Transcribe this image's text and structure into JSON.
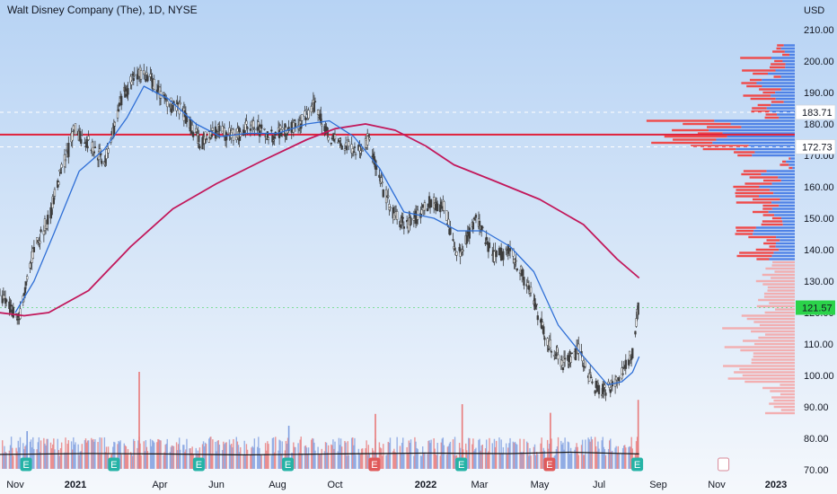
{
  "header": {
    "title": "Walt Disney Company (The), 1D, NYSE",
    "currency": "USD"
  },
  "colors": {
    "background_top": "#b7d3f4",
    "background_bottom": "#f5f8fc",
    "candle": "#3d3d3d",
    "ma_fast": "#2f6fd6",
    "ma_slow": "#c2185b",
    "resistance_line": "#e0203a",
    "volume_up": "#7f9fe0",
    "volume_down": "#e87a7a",
    "volume_ma": "#1a1a1a",
    "profile_up": "#4f82e6",
    "profile_down": "#ef4a4a",
    "profile_value_area_fade": "#f4a3a3",
    "price_badge": "#2bd34a",
    "level_badge": "#ffffff",
    "earnings_past": "#25b3a6",
    "earnings_down": "#e05a5a"
  },
  "chart_data": {
    "type": "candlestick",
    "title": "Walt Disney Company (The), 1D, NYSE",
    "ylabel": "USD",
    "ylim": [
      70,
      213
    ],
    "y_ticks": [
      210,
      200,
      190,
      180,
      170,
      160,
      150,
      140,
      130,
      120,
      110,
      100,
      90,
      80,
      70
    ],
    "x_ticks": [
      {
        "label": "Nov",
        "date": "2020-11-01",
        "bold": false
      },
      {
        "label": "2021",
        "date": "2021-01-01",
        "bold": true
      },
      {
        "label": "Apr",
        "date": "2021-04-01",
        "bold": false
      },
      {
        "label": "Jun",
        "date": "2021-06-01",
        "bold": false
      },
      {
        "label": "Aug",
        "date": "2021-08-01",
        "bold": false
      },
      {
        "label": "Oct",
        "date": "2021-10-01",
        "bold": false
      },
      {
        "label": "2022",
        "date": "2022-01-01",
        "bold": true
      },
      {
        "label": "Mar",
        "date": "2022-03-01",
        "bold": false
      },
      {
        "label": "May",
        "date": "2022-05-01",
        "bold": false
      },
      {
        "label": "Jul",
        "date": "2022-07-01",
        "bold": false
      },
      {
        "label": "Sep",
        "date": "2022-09-01",
        "bold": false
      },
      {
        "label": "Nov",
        "date": "2022-11-01",
        "bold": false
      },
      {
        "label": "2023",
        "date": "2023-01-01",
        "bold": true
      }
    ],
    "price_path": [
      [
        "2020-10-15",
        126
      ],
      [
        "2020-11-05",
        118
      ],
      [
        "2020-11-20",
        140
      ],
      [
        "2020-12-05",
        150
      ],
      [
        "2020-12-15",
        162
      ],
      [
        "2020-12-31",
        178
      ],
      [
        "2021-01-15",
        174
      ],
      [
        "2021-02-01",
        168
      ],
      [
        "2021-02-20",
        188
      ],
      [
        "2021-03-05",
        196
      ],
      [
        "2021-03-20",
        195
      ],
      [
        "2021-04-05",
        188
      ],
      [
        "2021-04-25",
        184
      ],
      [
        "2021-05-15",
        174
      ],
      [
        "2021-06-01",
        178
      ],
      [
        "2021-06-20",
        176
      ],
      [
        "2021-07-05",
        180
      ],
      [
        "2021-07-25",
        176
      ],
      [
        "2021-08-05",
        178
      ],
      [
        "2021-08-25",
        180
      ],
      [
        "2021-09-10",
        186
      ],
      [
        "2021-09-25",
        176
      ],
      [
        "2021-10-10",
        173
      ],
      [
        "2021-10-25",
        172
      ],
      [
        "2021-11-05",
        175
      ],
      [
        "2021-11-15",
        162
      ],
      [
        "2021-12-01",
        150
      ],
      [
        "2021-12-15",
        148
      ],
      [
        "2022-01-05",
        155
      ],
      [
        "2022-01-20",
        154
      ],
      [
        "2022-02-05",
        138
      ],
      [
        "2022-02-25",
        150
      ],
      [
        "2022-03-15",
        138
      ],
      [
        "2022-04-01",
        140
      ],
      [
        "2022-04-20",
        128
      ],
      [
        "2022-05-10",
        110
      ],
      [
        "2022-05-25",
        104
      ],
      [
        "2022-06-10",
        108
      ],
      [
        "2022-06-25",
        97
      ],
      [
        "2022-07-08",
        95
      ],
      [
        "2022-07-25",
        100
      ],
      [
        "2022-08-05",
        108
      ],
      [
        "2022-08-11",
        121.57
      ]
    ],
    "ma_fast": [
      [
        "2020-11-01",
        120
      ],
      [
        "2020-11-20",
        130
      ],
      [
        "2020-12-10",
        145
      ],
      [
        "2021-01-05",
        165
      ],
      [
        "2021-02-01",
        172
      ],
      [
        "2021-02-25",
        182
      ],
      [
        "2021-03-15",
        192
      ],
      [
        "2021-04-10",
        188
      ],
      [
        "2021-05-10",
        180
      ],
      [
        "2021-06-05",
        176
      ],
      [
        "2021-07-01",
        177
      ],
      [
        "2021-08-01",
        177
      ],
      [
        "2021-09-01",
        180
      ],
      [
        "2021-09-25",
        181
      ],
      [
        "2021-10-20",
        176
      ],
      [
        "2021-11-15",
        166
      ],
      [
        "2021-12-10",
        152
      ],
      [
        "2022-01-10",
        150
      ],
      [
        "2022-02-05",
        146
      ],
      [
        "2022-03-05",
        146
      ],
      [
        "2022-04-01",
        141
      ],
      [
        "2022-04-25",
        133
      ],
      [
        "2022-05-20",
        116
      ],
      [
        "2022-06-15",
        106
      ],
      [
        "2022-07-10",
        97
      ],
      [
        "2022-07-25",
        98
      ],
      [
        "2022-08-05",
        101
      ],
      [
        "2022-08-12",
        106
      ]
    ],
    "ma_slow": [
      [
        "2020-10-15",
        120
      ],
      [
        "2020-11-10",
        119
      ],
      [
        "2020-12-05",
        120
      ],
      [
        "2021-01-15",
        127
      ],
      [
        "2021-03-01",
        141
      ],
      [
        "2021-04-15",
        153
      ],
      [
        "2021-06-01",
        161
      ],
      [
        "2021-07-15",
        168
      ],
      [
        "2021-09-01",
        175
      ],
      [
        "2021-10-01",
        178.5
      ],
      [
        "2021-11-01",
        180
      ],
      [
        "2021-12-01",
        178
      ],
      [
        "2022-01-01",
        173
      ],
      [
        "2022-02-01",
        167
      ],
      [
        "2022-03-15",
        162
      ],
      [
        "2022-05-01",
        156
      ],
      [
        "2022-06-15",
        148
      ],
      [
        "2022-07-20",
        137
      ],
      [
        "2022-08-12",
        131
      ]
    ],
    "volume_ma": [
      [
        "2020-10-15",
        2.1
      ],
      [
        "2021-01-15",
        2.3
      ],
      [
        "2021-04-01",
        2.2
      ],
      [
        "2021-07-01",
        2.0
      ],
      [
        "2021-10-01",
        2.2
      ],
      [
        "2022-01-01",
        2.4
      ],
      [
        "2022-04-01",
        2.3
      ],
      [
        "2022-06-01",
        2.6
      ],
      [
        "2022-08-12",
        2.2
      ]
    ],
    "volume_spikes": [
      [
        "2021-03-10",
        9.0
      ],
      [
        "2021-11-11",
        5.1
      ],
      [
        "2022-02-10",
        6.0
      ],
      [
        "2022-05-12",
        5.2
      ],
      [
        "2022-08-11",
        6.4
      ],
      [
        "2021-08-13",
        4.0
      ],
      [
        "2020-11-13",
        3.5
      ]
    ],
    "price_levels": [
      {
        "label": "183.71",
        "value": 183.71,
        "style": "dashed-white"
      },
      {
        "label": "172.73",
        "value": 172.73,
        "style": "dashed-white"
      },
      {
        "label": "176.6",
        "value": 176.6,
        "style": "solid-red"
      }
    ],
    "last_price": {
      "label": "121.57",
      "value": 121.57
    },
    "earnings_markers": [
      {
        "date": "2020-11-12",
        "label": "E",
        "kind": "past"
      },
      {
        "date": "2021-02-11",
        "label": "E",
        "kind": "past"
      },
      {
        "date": "2021-05-13",
        "label": "E",
        "kind": "past"
      },
      {
        "date": "2021-08-12",
        "label": "E",
        "kind": "past"
      },
      {
        "date": "2021-11-10",
        "label": "E",
        "kind": "negative"
      },
      {
        "date": "2022-02-09",
        "label": "E",
        "kind": "past"
      },
      {
        "date": "2022-05-11",
        "label": "E",
        "kind": "negative"
      },
      {
        "date": "2022-08-10",
        "label": "E",
        "kind": "past"
      },
      {
        "date": "2022-11-08",
        "label": "E",
        "kind": "future"
      }
    ],
    "volume_profile_note": "Volume-by-price histogram on the right edge; upper value area (135–205) mostly blue with red fringes, lower area (88–135) faded red.",
    "grid": false
  }
}
